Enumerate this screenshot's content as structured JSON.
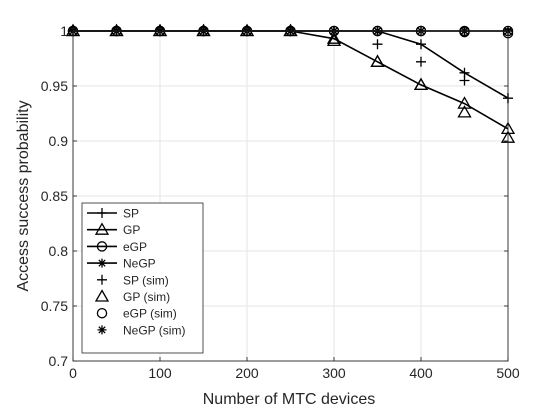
{
  "chart_data": {
    "type": "line",
    "title": "",
    "xlabel": "Number of MTC devices",
    "ylabel": "Access success probability",
    "xlim": [
      0,
      500
    ],
    "ylim": [
      0.7,
      1.0
    ],
    "xticks": [
      0,
      100,
      200,
      300,
      400,
      500
    ],
    "yticks": [
      0.7,
      0.75,
      0.8,
      0.85,
      0.9,
      0.95,
      1
    ],
    "xtick_labels": [
      "0",
      "100",
      "200",
      "300",
      "400",
      "500"
    ],
    "ytick_labels": [
      "0.7",
      "0.75",
      "0.8",
      "0.85",
      "0.9",
      "0.95",
      "1"
    ],
    "grid": true,
    "legend_position": "bottom-left",
    "series": [
      {
        "name": "SP",
        "style": "line",
        "marker": "plus",
        "x": [
          0,
          50,
          100,
          150,
          200,
          250,
          300,
          350,
          400,
          450,
          500
        ],
        "y": [
          1,
          1,
          1,
          1,
          1,
          1,
          1,
          1,
          0.988,
          0.962,
          0.939
        ]
      },
      {
        "name": "GP",
        "style": "line",
        "marker": "triangle",
        "x": [
          0,
          50,
          100,
          150,
          200,
          250,
          300,
          350,
          400,
          450,
          500
        ],
        "y": [
          1,
          1,
          1,
          1,
          1,
          1,
          0.993,
          0.972,
          0.951,
          0.934,
          0.911
        ]
      },
      {
        "name": "eGP",
        "style": "line",
        "marker": "circle",
        "x": [
          0,
          50,
          100,
          150,
          200,
          250,
          300,
          350,
          400,
          450,
          500
        ],
        "y": [
          1,
          1,
          1,
          1,
          1,
          1,
          1,
          1,
          1,
          1,
          1
        ]
      },
      {
        "name": "NeGP",
        "style": "line",
        "marker": "asterisk",
        "x": [
          0,
          50,
          100,
          150,
          200,
          250,
          300,
          350,
          400,
          450,
          500
        ],
        "y": [
          1,
          1,
          1,
          1,
          1,
          1,
          1,
          1,
          1,
          1,
          1
        ]
      },
      {
        "name": "SP (sim)",
        "style": "marker",
        "marker": "plus",
        "x": [
          0,
          50,
          100,
          150,
          200,
          250,
          300,
          350,
          400,
          450,
          500
        ],
        "y": [
          1,
          1,
          1,
          1,
          1,
          1,
          1,
          0.988,
          0.972,
          0.955,
          0.939
        ]
      },
      {
        "name": "GP (sim)",
        "style": "marker",
        "marker": "triangle",
        "x": [
          0,
          50,
          100,
          150,
          200,
          250,
          300,
          350,
          400,
          450,
          500
        ],
        "y": [
          1,
          1,
          1,
          1,
          1,
          1,
          0.991,
          0.972,
          0.951,
          0.926,
          0.903
        ]
      },
      {
        "name": "eGP (sim)",
        "style": "marker",
        "marker": "circle",
        "x": [
          0,
          50,
          100,
          150,
          200,
          250,
          300,
          350,
          400,
          450,
          500
        ],
        "y": [
          1,
          1,
          1,
          1,
          1,
          1,
          1,
          1,
          1,
          0.999,
          0.998
        ]
      },
      {
        "name": "NeGP (sim)",
        "style": "marker",
        "marker": "asterisk",
        "x": [
          0,
          50,
          100,
          150,
          200,
          250,
          300,
          350,
          400,
          450,
          500
        ],
        "y": [
          1,
          1,
          1,
          1,
          1,
          1,
          1,
          1,
          1,
          1,
          1
        ]
      }
    ]
  },
  "colors": {
    "line": "#000000",
    "grid": "#e6e6e6",
    "axis": "#262626",
    "background": "#ffffff"
  }
}
